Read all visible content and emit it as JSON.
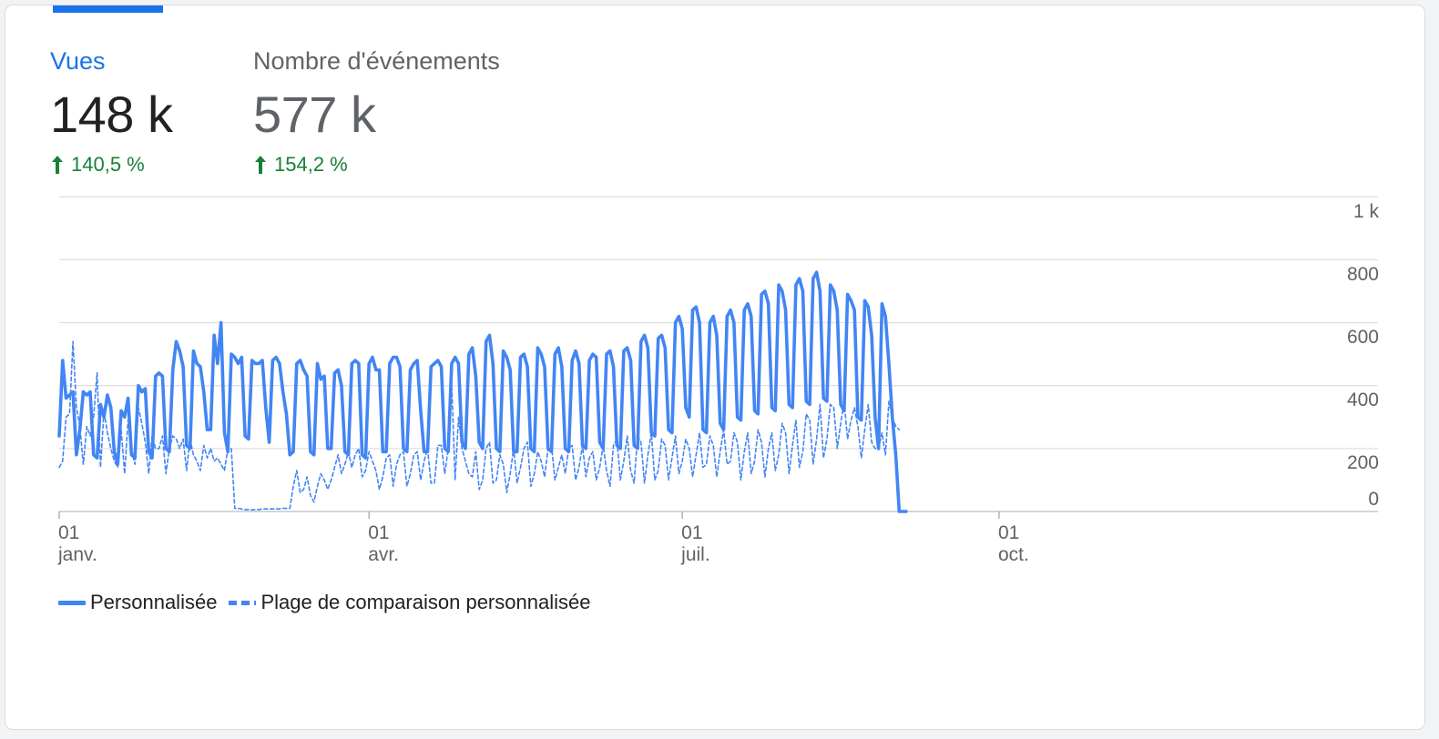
{
  "metrics": [
    {
      "label": "Vues",
      "value": "148 k",
      "change": "140,5 %",
      "direction_icon": "arrow-up-icon",
      "active": true
    },
    {
      "label": "Nombre d'événements",
      "value": "577 k",
      "change": "154,2 %",
      "direction_icon": "arrow-up-icon",
      "active": false
    }
  ],
  "colors": {
    "accent": "#1a73e8",
    "series": "#4285f4",
    "positive": "#188038",
    "grid": "#e0e0e0",
    "axis_text": "#5f6368"
  },
  "chart_data": {
    "type": "line",
    "x_axis_ticks": [
      {
        "day": "01",
        "month": "janv.",
        "day_index": 0
      },
      {
        "day": "01",
        "month": "avr.",
        "day_index": 90
      },
      {
        "day": "01",
        "month": "juil.",
        "day_index": 181
      },
      {
        "day": "01",
        "month": "oct.",
        "day_index": 273
      }
    ],
    "y_axis_ticks": [
      "0",
      "200",
      "400",
      "600",
      "800",
      "1 k"
    ],
    "ylim": [
      0,
      1000
    ],
    "legend_position": "bottom-left",
    "grid": true,
    "series": [
      {
        "name": "Personnalisée",
        "style": "solid",
        "weekly_pattern": [
          [
            240,
            480,
            360,
            370,
            380,
            180,
            260
          ],
          [
            380,
            370,
            380,
            180,
            170,
            340,
            300
          ],
          [
            370,
            330,
            190,
            150,
            320,
            300,
            360
          ],
          [
            180,
            170,
            400,
            380,
            390,
            190,
            170
          ],
          [
            430,
            440,
            430,
            200,
            190,
            450,
            540
          ],
          [
            510,
            460,
            210,
            200,
            510,
            470,
            460
          ],
          [
            380,
            260,
            260,
            560,
            470,
            600,
            250
          ],
          [
            190,
            500,
            490,
            470,
            490,
            240,
            230
          ],
          [
            480,
            470,
            470,
            480,
            330,
            220,
            480
          ],
          [
            490,
            470,
            380,
            310,
            180,
            190,
            470
          ],
          [
            480,
            450,
            430,
            190,
            180,
            470,
            420
          ],
          [
            430,
            200,
            200,
            440,
            450,
            400,
            190
          ],
          [
            180,
            470,
            480,
            470,
            180,
            170,
            470
          ],
          [
            490,
            450,
            450,
            190,
            190,
            470,
            490
          ],
          [
            490,
            460,
            200,
            190,
            450,
            470,
            480
          ],
          [
            320,
            190,
            190,
            460,
            470,
            480,
            460
          ],
          [
            200,
            190,
            470,
            490,
            470,
            220,
            200
          ],
          [
            500,
            520,
            430,
            220,
            200,
            540,
            560
          ],
          [
            470,
            200,
            190,
            510,
            490,
            450,
            190
          ],
          [
            190,
            490,
            500,
            460,
            200,
            190,
            520
          ],
          [
            500,
            460,
            200,
            190,
            500,
            520,
            460
          ],
          [
            200,
            190,
            480,
            510,
            470,
            210,
            200
          ],
          [
            480,
            500,
            490,
            220,
            200,
            500,
            510
          ],
          [
            460,
            210,
            200,
            510,
            520,
            480,
            210
          ],
          [
            200,
            540,
            560,
            520,
            250,
            240,
            550
          ],
          [
            560,
            520,
            260,
            250,
            600,
            620,
            580
          ],
          [
            330,
            300,
            640,
            650,
            600,
            260,
            250
          ],
          [
            600,
            620,
            560,
            280,
            260,
            620,
            640
          ],
          [
            600,
            300,
            290,
            640,
            660,
            620,
            320
          ],
          [
            310,
            690,
            700,
            660,
            330,
            320,
            720
          ],
          [
            700,
            640,
            340,
            330,
            720,
            740,
            700
          ],
          [
            350,
            340,
            740,
            760,
            700,
            360,
            350
          ],
          [
            720,
            700,
            640,
            340,
            320,
            690,
            670
          ],
          [
            640,
            300,
            290,
            670,
            650,
            560,
            300
          ],
          [
            200,
            660,
            620,
            470,
            300,
            180,
            0
          ],
          [
            0,
            0
          ]
        ]
      },
      {
        "name": "Plage de comparaison personnalisée",
        "style": "dashed",
        "weekly_pattern": [
          [
            140,
            160,
            300,
            310,
            540,
            330,
            270
          ],
          [
            150,
            270,
            240,
            300,
            440,
            140,
            320
          ],
          [
            250,
            200,
            160,
            140,
            260,
            120,
            290
          ],
          [
            200,
            150,
            330,
            280,
            220,
            120,
            240
          ],
          [
            200,
            200,
            240,
            120,
            200,
            240,
            230
          ],
          [
            200,
            230,
            130,
            230,
            180,
            160,
            130
          ],
          [
            210,
            170,
            200,
            160,
            170,
            150,
            130
          ],
          [
            200,
            200,
            10,
            10,
            8,
            6,
            6
          ],
          [
            5,
            6,
            6,
            8,
            8,
            8,
            8
          ],
          [
            8,
            8,
            10,
            10,
            10,
            80,
            130
          ],
          [
            60,
            70,
            110,
            50,
            30,
            80,
            120
          ],
          [
            100,
            70,
            100,
            140,
            180,
            120,
            150
          ],
          [
            190,
            140,
            180,
            200,
            110,
            130,
            190
          ],
          [
            160,
            130,
            70,
            110,
            170,
            180,
            80
          ],
          [
            150,
            180,
            190,
            80,
            120,
            180,
            190
          ],
          [
            100,
            160,
            200,
            90,
            90,
            210,
            210
          ],
          [
            120,
            200,
            410,
            100,
            300,
            200,
            160
          ],
          [
            120,
            110,
            190,
            70,
            100,
            200,
            220
          ],
          [
            90,
            100,
            180,
            150,
            60,
            120,
            200
          ],
          [
            90,
            140,
            200,
            220,
            80,
            120,
            190
          ],
          [
            160,
            110,
            200,
            210,
            100,
            140,
            180
          ],
          [
            120,
            200,
            210,
            100,
            140,
            210,
            110
          ],
          [
            170,
            190,
            100,
            140,
            210,
            130,
            80
          ],
          [
            210,
            230,
            100,
            160,
            240,
            130,
            90
          ],
          [
            240,
            220,
            90,
            180,
            250,
            100,
            130
          ],
          [
            230,
            210,
            100,
            170,
            240,
            120,
            160
          ],
          [
            230,
            200,
            110,
            180,
            250,
            140,
            150
          ],
          [
            240,
            210,
            110,
            190,
            260,
            150,
            160
          ],
          [
            250,
            220,
            100,
            190,
            250,
            120,
            160
          ],
          [
            260,
            220,
            110,
            200,
            250,
            130,
            180
          ],
          [
            280,
            250,
            120,
            210,
            290,
            140,
            190
          ],
          [
            310,
            290,
            150,
            230,
            340,
            170,
            230
          ],
          [
            340,
            330,
            200,
            280,
            350,
            230,
            290
          ],
          [
            330,
            270,
            170,
            260,
            340,
            220,
            200
          ],
          [
            200,
            250,
            180,
            350,
            300,
            270,
            260
          ]
        ]
      }
    ]
  }
}
